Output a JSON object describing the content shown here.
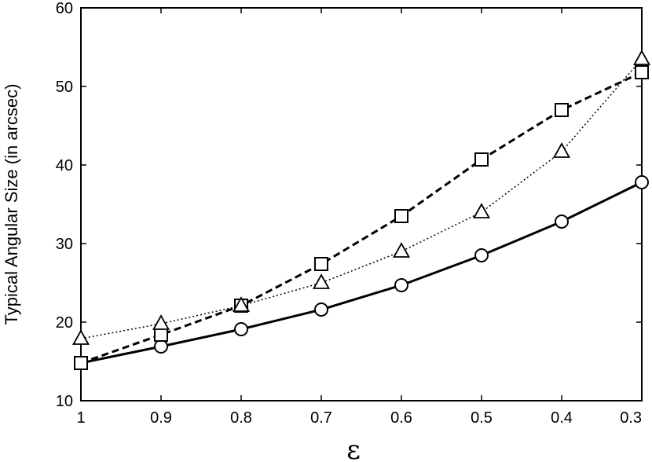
{
  "chart_data": {
    "type": "line",
    "xlabel": "ε",
    "ylabel": "Typical Angular Size (in arcsec)",
    "xlim": [
      1,
      0.3
    ],
    "ylim": [
      10,
      60
    ],
    "x_reversed": true,
    "xticks": [
      "1",
      "0.9",
      "0.8",
      "0.7",
      "0.6",
      "0.5",
      "0.4",
      "0.3"
    ],
    "yticks": [
      "10",
      "20",
      "30",
      "40",
      "50",
      "60"
    ],
    "grid": false,
    "legend": "none",
    "x": [
      1,
      0.9,
      0.8,
      0.7,
      0.6,
      0.5,
      0.4,
      0.3
    ],
    "series": [
      {
        "marker": "circle",
        "line": "solid",
        "values": [
          14.8,
          16.9,
          19.1,
          21.6,
          24.7,
          28.5,
          32.8,
          37.8
        ]
      },
      {
        "marker": "square",
        "line": "dashed",
        "values": [
          14.8,
          18.4,
          22.1,
          27.4,
          33.5,
          40.7,
          47.0,
          51.8
        ]
      },
      {
        "marker": "triangle",
        "line": "dotted",
        "values": [
          17.9,
          19.8,
          22.1,
          25.0,
          29.0,
          34.0,
          41.7,
          53.5
        ]
      }
    ]
  }
}
